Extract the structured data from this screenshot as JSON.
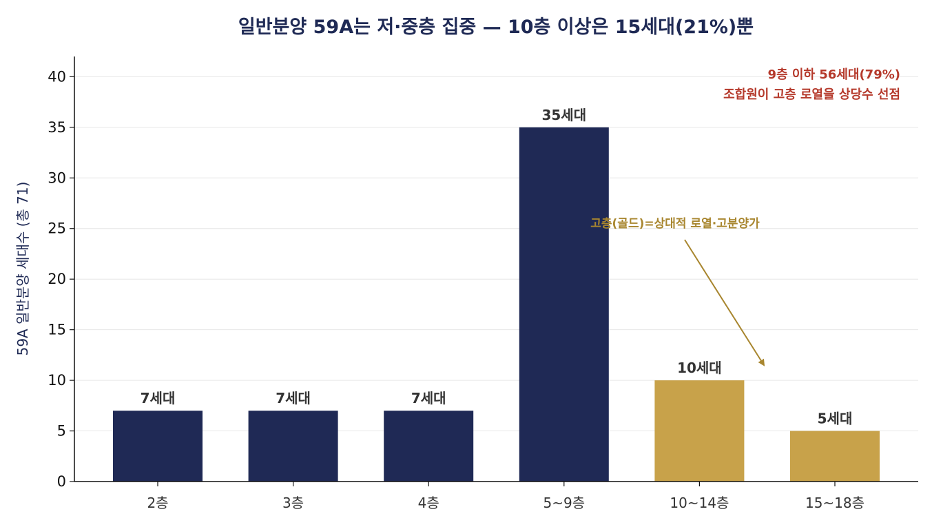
{
  "chart_data": {
    "type": "bar",
    "title": "일반분양 59A는 저·중층 집중 — 10층 이상은 15세대(21%)뿐",
    "xlabel": "",
    "ylabel": "59A 일반분양 세대수 (총 71)",
    "ylim": [
      0,
      42
    ],
    "yticks": [
      0,
      5,
      10,
      15,
      20,
      25,
      30,
      35,
      40
    ],
    "categories": [
      "2층",
      "3층",
      "4층",
      "5~9층",
      "10~14층",
      "15~18층"
    ],
    "values": [
      7,
      7,
      7,
      35,
      10,
      5
    ],
    "data_labels": [
      "7세대",
      "7세대",
      "7세대",
      "35세대",
      "10세대",
      "5세대"
    ],
    "bar_colors": [
      "#1f2955",
      "#1f2955",
      "#1f2955",
      "#1f2955",
      "#c8a24a",
      "#c8a24a"
    ],
    "grid": "horizontal",
    "annotations": {
      "top_right_line1": "9층 이하 56세대(79%)",
      "top_right_line2": "조합원이 고층 로열을 상당수 선점",
      "gold_note": "고층(골드)=상대적 로열·고분양가"
    }
  },
  "colors": {
    "navy": "#1f2955",
    "gold": "#c8a24a",
    "note_red": "#b5392b",
    "arrow_gold": "#a8862f",
    "title": "#1f2a55"
  }
}
